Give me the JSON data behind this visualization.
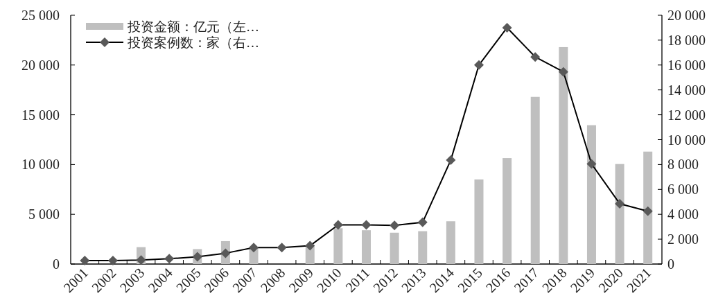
{
  "chart_data": {
    "type": "bar",
    "categories": [
      "2001",
      "2002",
      "2003",
      "2004",
      "2005",
      "2006",
      "2007",
      "2008",
      "2009",
      "2010",
      "2011",
      "2012",
      "2013",
      "2014",
      "2015",
      "2016",
      "2017",
      "2018",
      "2019",
      "2020",
      "2021"
    ],
    "series": [
      {
        "name": "投资金额：亿元（左…",
        "color": "#bfbfbf",
        "values": [
          null,
          null,
          1700,
          null,
          1500,
          2300,
          1700,
          null,
          1800,
          3600,
          3400,
          3150,
          3300,
          4300,
          8500,
          10650,
          16800,
          21800,
          13950,
          10050,
          11300
        ]
      },
      {
        "name": "投资案例数：家（右…",
        "type": "line",
        "axis": "y2",
        "color": "#000000",
        "marker": "diamond",
        "values": [
          280,
          280,
          320,
          430,
          580,
          870,
          1320,
          1320,
          1470,
          3150,
          3150,
          3100,
          3350,
          8350,
          16000,
          19000,
          16650,
          15450,
          8050,
          4850,
          4250
        ]
      }
    ],
    "ylim": [
      0,
      25000
    ],
    "yticks": [
      0,
      {
        "value": 5000,
        "label": "5 000"
      },
      {
        "value": 10000,
        "label": "10 000"
      },
      {
        "value": 15000,
        "label": "15 000"
      },
      {
        "value": 20000,
        "label": "20 000"
      },
      {
        "value": 25000,
        "label": "25 000"
      }
    ],
    "y2lim": [
      0,
      20000
    ],
    "y2ticks": [
      0,
      {
        "value": 2000,
        "label": "2 000"
      },
      {
        "value": 4000,
        "label": "4 000"
      },
      {
        "value": 6000,
        "label": "6 000"
      },
      {
        "value": 8000,
        "label": "8 000"
      },
      {
        "value": 10000,
        "label": "10 000"
      },
      {
        "value": 12000,
        "label": "12 000"
      },
      {
        "value": 14000,
        "label": "14 000"
      },
      {
        "value": 16000,
        "label": "16 000"
      },
      {
        "value": 18000,
        "label": "18 000"
      },
      {
        "value": 20000,
        "label": "20 000"
      }
    ],
    "legend": "top left"
  }
}
